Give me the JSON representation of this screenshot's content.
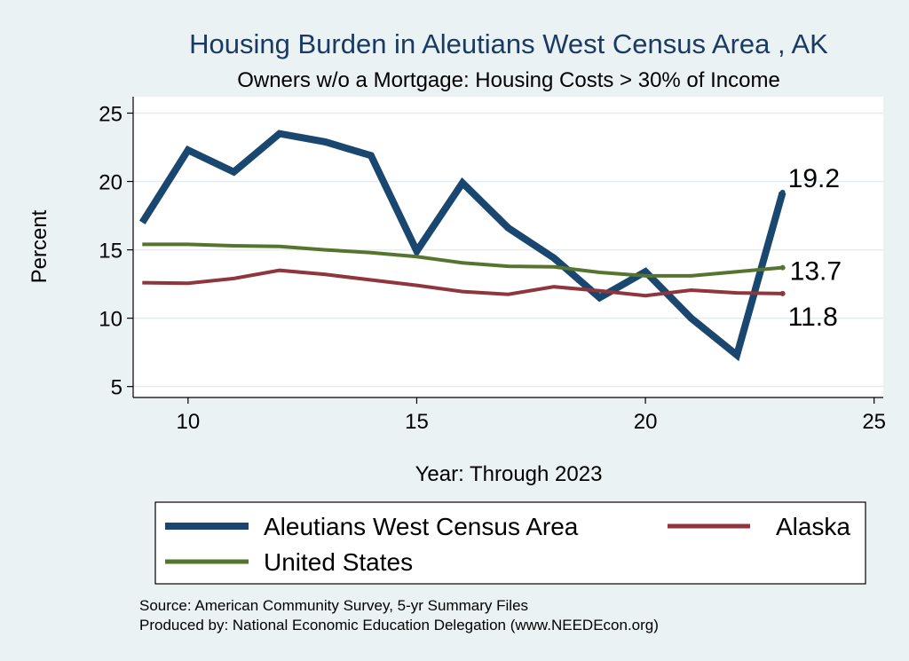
{
  "chart_data": {
    "type": "line",
    "title": "Housing Burden in Aleutians West Census Area , AK",
    "subtitle": "Owners w/o a Mortgage: Housing Costs > 30% of Income",
    "xlabel": "Year: Through 2023",
    "ylabel": "Percent",
    "xlim": [
      8.8,
      25.2
    ],
    "ylim": [
      4.2,
      26.2
    ],
    "x_ticks": [
      10,
      15,
      20,
      25
    ],
    "y_ticks": [
      5,
      10,
      15,
      20,
      25
    ],
    "grid": true,
    "legend_position": "bottom",
    "x": [
      9,
      10,
      11,
      12,
      13,
      14,
      15,
      16,
      17,
      18,
      19,
      20,
      21,
      22,
      23
    ],
    "series": [
      {
        "name": "Aleutians West Census Area",
        "color": "#1a476f",
        "values": [
          17.0,
          22.3,
          20.7,
          23.5,
          22.9,
          21.9,
          14.9,
          19.9,
          16.6,
          14.4,
          11.5,
          13.4,
          10.0,
          7.3,
          19.2
        ],
        "end_label": "19.2"
      },
      {
        "name": "Alaska",
        "color": "#90353b",
        "values": [
          12.6,
          12.55,
          12.9,
          13.5,
          13.2,
          12.8,
          12.4,
          11.95,
          11.75,
          12.3,
          12.0,
          11.65,
          12.05,
          11.85,
          11.8
        ],
        "end_label": "11.8"
      },
      {
        "name": "United States",
        "color": "#55752f",
        "values": [
          15.4,
          15.4,
          15.3,
          15.25,
          15.0,
          14.8,
          14.5,
          14.05,
          13.8,
          13.75,
          13.35,
          13.1,
          13.1,
          13.4,
          13.7
        ],
        "end_label": "13.7"
      }
    ]
  },
  "source_line": "Source: American Community Survey, 5-yr Summary Files",
  "produced_line": "Produced by: National Economic Education Delegation (www.NEEDEcon.org)"
}
